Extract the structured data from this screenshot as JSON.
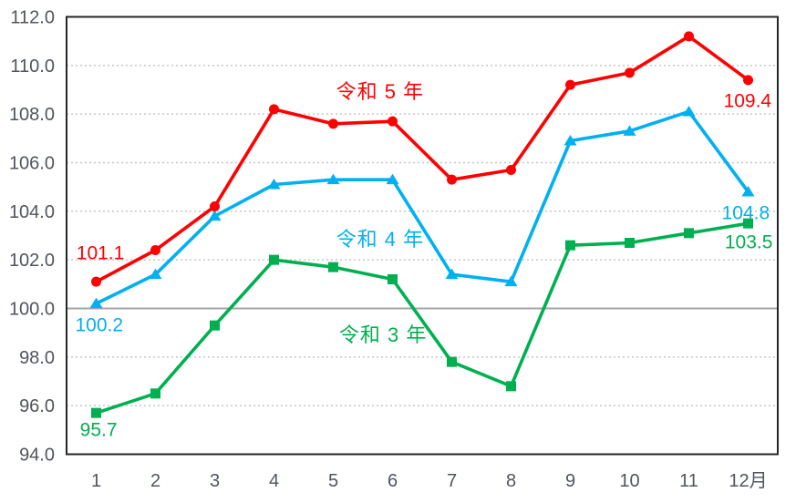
{
  "page": {
    "background": "#ffffff"
  },
  "chart_data": {
    "type": "line",
    "title": "",
    "xlabel": "",
    "ylabel": "",
    "x_categories": [
      "1",
      "2",
      "3",
      "4",
      "5",
      "6",
      "7",
      "8",
      "9",
      "10",
      "11",
      "12月"
    ],
    "y_ticks": [
      "94.0",
      "96.0",
      "98.0",
      "100.0",
      "102.0",
      "104.0",
      "106.0",
      "108.0",
      "110.0",
      "112.0"
    ],
    "ylim": [
      94,
      112
    ],
    "y_major_step": 2,
    "grid": "horizontal-dotted",
    "emphasis_line_value": 100,
    "legend_position": "inline-series-labels",
    "series": [
      {
        "id": "reiwa5",
        "name": "令和 5 年",
        "color": "#ff0000",
        "marker": "circle",
        "values": [
          101.1,
          102.4,
          104.2,
          108.2,
          107.6,
          107.7,
          105.3,
          105.7,
          109.2,
          109.7,
          111.2,
          109.4
        ]
      },
      {
        "id": "reiwa4",
        "name": "令和 4 年",
        "color": "#00b0f0",
        "marker": "triangle",
        "values": [
          100.2,
          101.4,
          103.8,
          105.1,
          105.3,
          105.3,
          101.4,
          101.1,
          106.9,
          107.3,
          108.1,
          104.8
        ]
      },
      {
        "id": "reiwa3",
        "name": "令和 3 年",
        "color": "#00b050",
        "marker": "square",
        "values": [
          95.7,
          96.5,
          99.3,
          102.0,
          101.7,
          101.2,
          97.8,
          96.8,
          102.6,
          102.7,
          103.1,
          103.5
        ]
      }
    ],
    "series_labels": [
      {
        "series": "reiwa5",
        "month": 5.79,
        "value": 108.94
      },
      {
        "series": "reiwa4",
        "month": 5.79,
        "value": 102.87
      },
      {
        "series": "reiwa3",
        "month": 5.84,
        "value": 98.93
      }
    ],
    "point_labels": [
      {
        "series": "reiwa5",
        "text": "101.1",
        "month": 1.07,
        "value": 102.31
      },
      {
        "series": "reiwa4",
        "text": "100.2",
        "month": 1.05,
        "value": 99.34
      },
      {
        "series": "reiwa3",
        "text": "95.7",
        "month": 1.04,
        "value": 95.03
      },
      {
        "series": "reiwa5",
        "text": "109.4",
        "month": 11.99,
        "value": 108.57
      },
      {
        "series": "reiwa4",
        "text": "104.8",
        "month": 11.96,
        "value": 103.96
      },
      {
        "series": "reiwa3",
        "text": "103.5",
        "month": 12.01,
        "value": 102.76
      }
    ]
  },
  "style": {
    "grid_color": "#c6c6c6",
    "baseline_color": "#a6a6a6",
    "border_color": "#262626",
    "tick_text_color": "#50555e"
  }
}
